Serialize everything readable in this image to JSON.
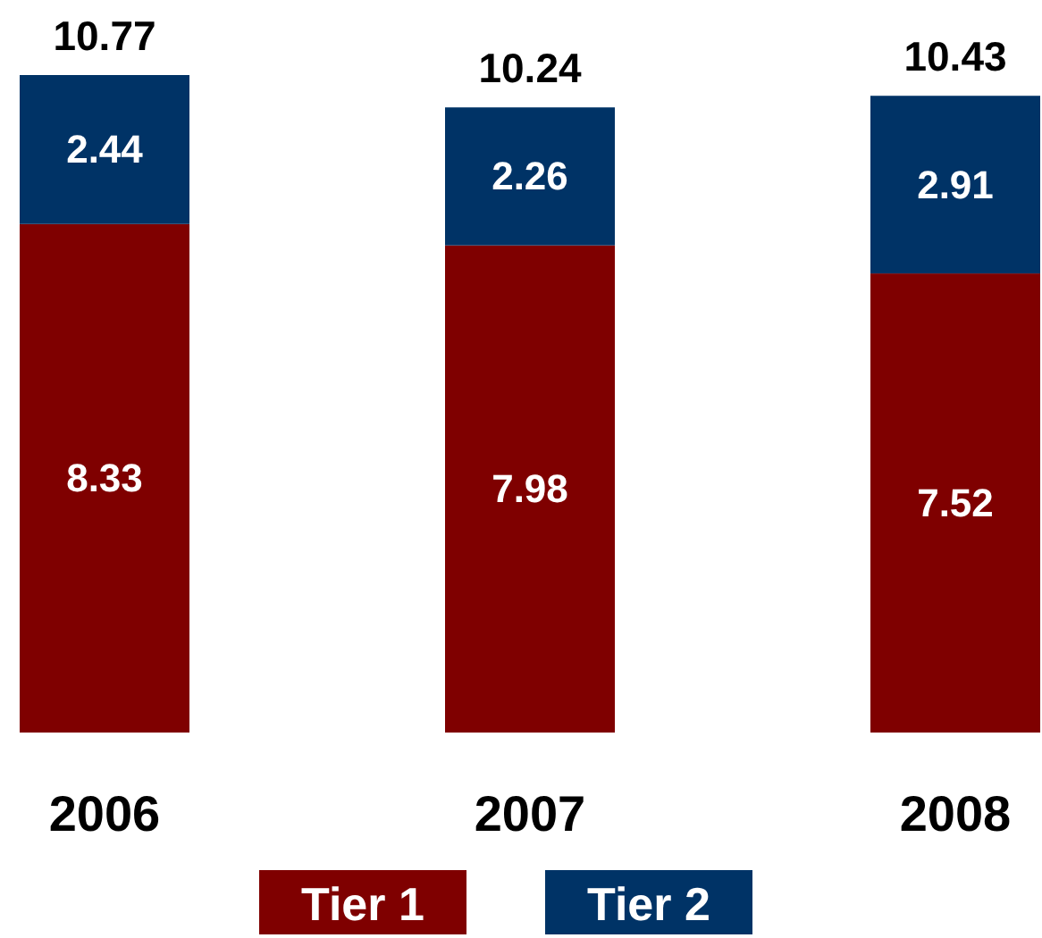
{
  "chart_data": {
    "type": "bar",
    "stacked": true,
    "categories": [
      "2006",
      "2007",
      "2008"
    ],
    "series": [
      {
        "name": "Tier 1",
        "color": "#7f0000",
        "values": [
          8.33,
          7.98,
          7.52
        ]
      },
      {
        "name": "Tier 2",
        "color": "#003366",
        "values": [
          2.44,
          2.26,
          2.91
        ]
      }
    ],
    "data_labels": true,
    "totals": [
      "10.77",
      "10.24",
      "10.43"
    ],
    "legend": "bottom"
  }
}
